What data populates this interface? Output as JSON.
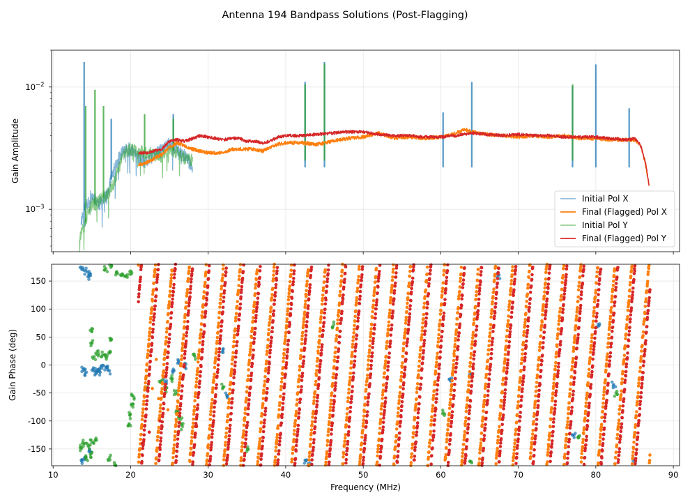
{
  "chart_data": {
    "type": "line",
    "title": "Antenna 194 Bandpass Solutions (Post-Flagging)",
    "panels": [
      {
        "name": "amplitude",
        "ylabel": "Gain Amplitude",
        "yscale": "log",
        "ylim": [
          0.00045,
          0.02
        ],
        "yticks": [
          {
            "value": 0.001,
            "base": "10",
            "exp": "−3"
          },
          {
            "value": 0.01,
            "base": "10",
            "exp": "−2"
          }
        ],
        "xlim": [
          9.8,
          90.8
        ],
        "grid": true,
        "legend": {
          "position": "lower right",
          "entries": [
            {
              "label": "Initial Pol X",
              "color": "#1f77b4",
              "alpha": 0.5
            },
            {
              "label": "Final (Flagged) Pol X",
              "color": "#ff7f0e",
              "alpha": 1.0
            },
            {
              "label": "Initial Pol Y",
              "color": "#2ca02c",
              "alpha": 0.5
            },
            {
              "label": "Final (Flagged) Pol Y",
              "color": "#d62728",
              "alpha": 1.0
            }
          ]
        },
        "series": [
          {
            "name": "Initial Pol X",
            "color": "#1f77b4",
            "x": [
              13.6,
              14.3,
              15.0,
              16.0,
              17.0,
              18.0,
              19.0,
              20.0,
              21.0,
              22.0,
              23.0,
              24.0,
              25.0,
              26.0,
              27.0,
              28.0
            ],
            "y": [
              0.0008,
              0.0011,
              0.0013,
              0.0011,
              0.0013,
              0.0022,
              0.003,
              0.0031,
              0.0026,
              0.0024,
              0.0028,
              0.003,
              0.0035,
              0.0031,
              0.0027,
              0.0022
            ],
            "spikes": [
              {
                "x": 14.0,
                "y": 0.016
              },
              {
                "x": 17.5,
                "y": 0.0055
              },
              {
                "x": 25.5,
                "y": 0.006
              },
              {
                "x": 42.5,
                "y": 0.011
              },
              {
                "x": 45.0,
                "y": 0.016
              },
              {
                "x": 60.3,
                "y": 0.0062
              },
              {
                "x": 64.0,
                "y": 0.011
              },
              {
                "x": 77.0,
                "y": 0.0102
              },
              {
                "x": 80.0,
                "y": 0.0153
              },
              {
                "x": 84.3,
                "y": 0.0067
              }
            ]
          },
          {
            "name": "Final (Flagged) Pol X",
            "color": "#ff7f0e",
            "x": [
              21.0,
              22.0,
              23.0,
              24.0,
              25.0,
              26.0,
              27.0,
              28.0,
              29.0,
              30.0,
              31.0,
              32.0,
              33.0,
              34.0,
              35.0,
              36.0,
              37.0,
              38.0,
              39.0,
              40.0,
              42.0,
              44.0,
              46.0,
              48.0,
              50.0,
              52.0,
              54.0,
              56.0,
              58.0,
              60.0,
              62.0,
              63.0,
              64.0,
              66.0,
              68.0,
              70.0,
              72.0,
              74.0,
              76.0,
              78.0,
              80.0,
              82.0,
              84.0,
              85.0,
              85.8,
              86.4,
              86.9
            ],
            "y": [
              0.0023,
              0.0024,
              0.0026,
              0.0028,
              0.0032,
              0.0035,
              0.0033,
              0.0031,
              0.003,
              0.0029,
              0.0029,
              0.0029,
              0.0031,
              0.0031,
              0.0031,
              0.0031,
              0.003,
              0.0032,
              0.0034,
              0.0035,
              0.0035,
              0.0034,
              0.0036,
              0.0038,
              0.0039,
              0.0042,
              0.0038,
              0.0039,
              0.0038,
              0.0039,
              0.0042,
              0.0045,
              0.0043,
              0.0041,
              0.004,
              0.0039,
              0.004,
              0.0039,
              0.004,
              0.0038,
              0.0038,
              0.0037,
              0.0037,
              0.0037,
              0.0033,
              0.0023,
              0.0015
            ],
            "spikes": []
          },
          {
            "name": "Initial Pol Y",
            "color": "#2ca02c",
            "x": [
              13.4,
              14.0,
              14.5,
              15.0,
              15.5,
              16.0,
              17.0,
              18.0,
              18.5,
              19.0,
              19.5,
              20.0,
              21.0,
              22.0,
              23.0,
              24.0,
              25.0,
              26.0,
              27.0,
              28.0
            ],
            "y": [
              0.0006,
              0.0007,
              0.0009,
              0.0011,
              0.0011,
              0.0012,
              0.0013,
              0.0017,
              0.0022,
              0.0027,
              0.003,
              0.0031,
              0.003,
              0.0029,
              0.0028,
              0.0027,
              0.0031,
              0.0029,
              0.0026,
              0.0025
            ],
            "spikes": [
              {
                "x": 14.2,
                "y": 0.007
              },
              {
                "x": 15.4,
                "y": 0.0095
              },
              {
                "x": 16.5,
                "y": 0.007
              },
              {
                "x": 21.8,
                "y": 0.006
              },
              {
                "x": 25.5,
                "y": 0.0055
              },
              {
                "x": 42.5,
                "y": 0.0105
              },
              {
                "x": 45.0,
                "y": 0.0155
              },
              {
                "x": 77.0,
                "y": 0.0105
              }
            ]
          },
          {
            "name": "Final (Flagged) Pol Y",
            "color": "#d62728",
            "x": [
              21.0,
              22.0,
              23.0,
              24.0,
              25.0,
              26.0,
              27.0,
              28.0,
              29.0,
              30.0,
              31.0,
              32.0,
              33.0,
              34.0,
              35.0,
              36.0,
              37.0,
              38.0,
              39.0,
              40.0,
              42.0,
              44.0,
              46.0,
              48.0,
              50.0,
              52.0,
              54.0,
              56.0,
              58.0,
              60.0,
              62.0,
              64.0,
              66.0,
              68.0,
              70.0,
              72.0,
              74.0,
              76.0,
              78.0,
              80.0,
              82.0,
              84.0,
              85.0,
              85.8,
              86.4,
              86.9
            ],
            "y": [
              0.0029,
              0.0029,
              0.003,
              0.0031,
              0.0036,
              0.0037,
              0.0036,
              0.0038,
              0.004,
              0.0039,
              0.0038,
              0.0037,
              0.0038,
              0.0038,
              0.0036,
              0.0036,
              0.0035,
              0.0036,
              0.0039,
              0.004,
              0.004,
              0.0041,
              0.0042,
              0.0043,
              0.0043,
              0.0041,
              0.004,
              0.004,
              0.0039,
              0.0039,
              0.004,
              0.0042,
              0.0041,
              0.004,
              0.0041,
              0.004,
              0.004,
              0.0039,
              0.0039,
              0.0039,
              0.0038,
              0.0037,
              0.0038,
              0.0033,
              0.0024,
              0.0015
            ],
            "spikes": []
          }
        ]
      },
      {
        "name": "phase",
        "ylabel": "Gain Phase (deg)",
        "ylim": [
          -180,
          180
        ],
        "yticks": [
          -150,
          -100,
          -50,
          0,
          50,
          100,
          150
        ],
        "xlim": [
          9.8,
          90.8
        ],
        "grid": true,
        "series": [
          {
            "name": "Initial Pol X",
            "color": "#1f77b4",
            "alpha": 0.7,
            "points": [
              [
                13.6,
                175
              ],
              [
                14.2,
                168
              ],
              [
                14.8,
                163
              ],
              [
                14.6,
                158
              ],
              [
                13.9,
                -8
              ],
              [
                14.3,
                -13
              ],
              [
                15.2,
                -5
              ],
              [
                15.8,
                -8
              ],
              [
                16.3,
                -6
              ],
              [
                16.8,
                -4
              ],
              [
                17.1,
                -10
              ],
              [
                15.5,
                -16
              ],
              [
                16.0,
                -12
              ],
              [
                13.7,
                -172
              ],
              [
                14.1,
                -165
              ],
              [
                14.8,
                -155
              ],
              [
                24.4,
                -30
              ],
              [
                25.6,
                -10
              ],
              [
                26.2,
                5
              ],
              [
                27.0,
                -2
              ],
              [
                31.9,
                25
              ],
              [
                32.5,
                -55
              ],
              [
                61.3,
                -28
              ],
              [
                63.8,
                -20
              ],
              [
                67.4,
                160
              ],
              [
                77.2,
                -125
              ],
              [
                80.3,
                73
              ],
              [
                82.3,
                -35
              ],
              [
                85.0,
                -170
              ],
              [
                42.5,
                -170
              ],
              [
                43.0,
                -180
              ]
            ]
          },
          {
            "name": "Final (Flagged) Pol X",
            "color": "#ff7f0e",
            "alpha": 1.0,
            "slope": 164,
            "x_start": 21.0,
            "x_end": 87.0,
            "anchor_x": 21.0,
            "anchor_phase": -180,
            "points": [
              [
                22.0,
                -20
              ],
              [
                22.8,
                -42
              ],
              [
                23.6,
                -60
              ],
              [
                23.3,
                10
              ],
              [
                24.8,
                -80
              ]
            ]
          },
          {
            "name": "Initial Pol Y",
            "color": "#2ca02c",
            "alpha": 0.7,
            "points": [
              [
                13.6,
                -148
              ],
              [
                14.0,
                -140
              ],
              [
                14.5,
                -145
              ],
              [
                15.0,
                -138
              ],
              [
                14.2,
                -165
              ],
              [
                14.8,
                -160
              ],
              [
                15.4,
                -135
              ],
              [
                16.8,
                172
              ],
              [
                17.5,
                178
              ],
              [
                18.2,
                165
              ],
              [
                18.8,
                160
              ],
              [
                19.4,
                158
              ],
              [
                19.9,
                162
              ],
              [
                15.3,
                15
              ],
              [
                15.9,
                20
              ],
              [
                16.4,
                18
              ],
              [
                16.9,
                14
              ],
              [
                17.2,
                22
              ],
              [
                15.0,
                65
              ],
              [
                15.0,
                40
              ],
              [
                17.5,
                45
              ],
              [
                18.1,
                -180
              ],
              [
                17.3,
                -165
              ],
              [
                19.8,
                -105
              ],
              [
                19.9,
                -90
              ],
              [
                20.1,
                -70
              ],
              [
                20.3,
                -55
              ],
              [
                22.1,
                -40
              ],
              [
                23.9,
                -30
              ],
              [
                24.5,
                -45
              ],
              [
                25.3,
                -25
              ],
              [
                25.8,
                -50
              ],
              [
                26.1,
                -80
              ],
              [
                26.4,
                -98
              ],
              [
                26.7,
                -110
              ],
              [
                28.3,
                15
              ],
              [
                31.9,
                -40
              ],
              [
                35.1,
                -150
              ],
              [
                46.2,
                72
              ],
              [
                60.3,
                -85
              ],
              [
                64.0,
                -175
              ],
              [
                77.8,
                -128
              ],
              [
                82.6,
                -50
              ]
            ]
          },
          {
            "name": "Final (Flagged) Pol Y",
            "color": "#d62728",
            "alpha": 1.0,
            "slope": 164,
            "x_start": 21.0,
            "x_end": 87.0,
            "anchor_x": 21.4,
            "anchor_phase": -180,
            "points": [
              [
                21.5,
                -140
              ],
              [
                22.4,
                -120
              ],
              [
                23.8,
                -100
              ],
              [
                28.5,
                -110
              ]
            ]
          }
        ]
      }
    ],
    "xlabel": "Frequency (MHz)",
    "xticks": [
      10,
      20,
      30,
      40,
      50,
      60,
      70,
      80,
      90
    ]
  }
}
